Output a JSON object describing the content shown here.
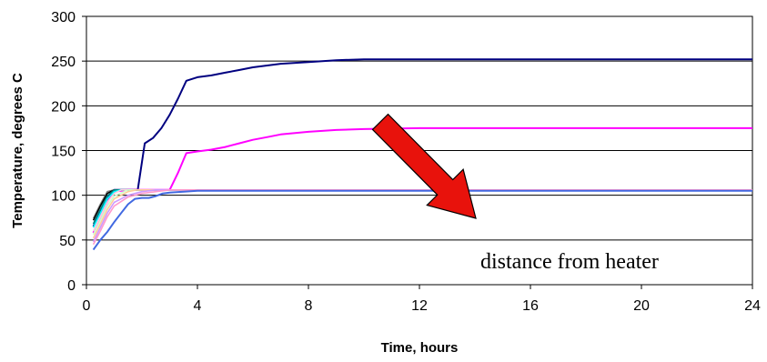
{
  "chart_data": {
    "type": "line",
    "title": "",
    "xlabel": "Time, hours",
    "ylabel": "Temperature, degrees C",
    "xlim": [
      0,
      24
    ],
    "ylim": [
      0,
      300
    ],
    "x_ticks": [
      0,
      4,
      8,
      12,
      16,
      20,
      24
    ],
    "y_ticks": [
      0,
      50,
      100,
      150,
      200,
      250,
      300
    ],
    "grid": "horizontal",
    "legend": "none",
    "annotation": "distance from heater",
    "arrow_color": "#e8120c",
    "series": [
      {
        "color": "#000080",
        "points": [
          [
            0.25,
            65
          ],
          [
            0.5,
            82
          ],
          [
            0.75,
            96
          ],
          [
            1.0,
            106
          ],
          [
            1.5,
            106
          ],
          [
            1.85,
            106
          ],
          [
            2.1,
            158
          ],
          [
            2.4,
            164
          ],
          [
            2.7,
            175
          ],
          [
            3.0,
            190
          ],
          [
            3.3,
            208
          ],
          [
            3.6,
            228
          ],
          [
            4.0,
            232
          ],
          [
            4.5,
            234
          ],
          [
            5.0,
            237
          ],
          [
            5.5,
            240
          ],
          [
            6.0,
            243
          ],
          [
            7.0,
            247
          ],
          [
            8.0,
            249
          ],
          [
            9.0,
            251
          ],
          [
            10.0,
            252
          ],
          [
            12.0,
            252
          ],
          [
            16.0,
            252
          ],
          [
            20.0,
            252
          ],
          [
            24.0,
            252
          ]
        ]
      },
      {
        "color": "#ff00ff",
        "points": [
          [
            0.25,
            58
          ],
          [
            0.5,
            76
          ],
          [
            0.75,
            92
          ],
          [
            1.0,
            104
          ],
          [
            1.5,
            106
          ],
          [
            2.0,
            106
          ],
          [
            2.5,
            106
          ],
          [
            3.0,
            106
          ],
          [
            3.3,
            125
          ],
          [
            3.6,
            147
          ],
          [
            4.0,
            149
          ],
          [
            4.5,
            151
          ],
          [
            5.0,
            154
          ],
          [
            5.5,
            158
          ],
          [
            6.0,
            162
          ],
          [
            6.5,
            165
          ],
          [
            7.0,
            168
          ],
          [
            8.0,
            171
          ],
          [
            9.0,
            173
          ],
          [
            10.0,
            174
          ],
          [
            12.0,
            175
          ],
          [
            16.0,
            175
          ],
          [
            20.0,
            175
          ],
          [
            24.0,
            175
          ]
        ]
      },
      {
        "color": "#808080",
        "points": [
          [
            0.25,
            74
          ],
          [
            0.5,
            90
          ],
          [
            0.75,
            104
          ],
          [
            1.0,
            106
          ],
          [
            24.0,
            106
          ]
        ]
      },
      {
        "color": "#000000",
        "points": [
          [
            0.25,
            72
          ],
          [
            0.5,
            88
          ],
          [
            0.75,
            102
          ],
          [
            1.0,
            106
          ],
          [
            24.0,
            106
          ]
        ]
      },
      {
        "color": "#008080",
        "points": [
          [
            0.25,
            68
          ],
          [
            0.5,
            84
          ],
          [
            0.75,
            99
          ],
          [
            1.0,
            106
          ],
          [
            24.0,
            106
          ]
        ]
      },
      {
        "color": "#00ffff",
        "points": [
          [
            0.25,
            64
          ],
          [
            0.5,
            80
          ],
          [
            0.75,
            96
          ],
          [
            1.0,
            104
          ],
          [
            1.25,
            106
          ],
          [
            24.0,
            106
          ]
        ]
      },
      {
        "color": "#ffd0e0",
        "points": [
          [
            0.25,
            60
          ],
          [
            0.5,
            76
          ],
          [
            0.75,
            92
          ],
          [
            1.0,
            102
          ],
          [
            1.25,
            106
          ],
          [
            24.0,
            106
          ]
        ]
      },
      {
        "color": "#ccffcc",
        "points": [
          [
            0.25,
            56
          ],
          [
            0.5,
            72
          ],
          [
            0.75,
            88
          ],
          [
            1.0,
            99
          ],
          [
            1.5,
            106
          ],
          [
            24.0,
            106
          ]
        ]
      },
      {
        "color": "#ffcc99",
        "points": [
          [
            0.25,
            52
          ],
          [
            0.5,
            68
          ],
          [
            0.75,
            84
          ],
          [
            1.0,
            96
          ],
          [
            1.5,
            104
          ],
          [
            1.8,
            106
          ],
          [
            24.0,
            106
          ]
        ]
      },
      {
        "color": "#cc99ff",
        "points": [
          [
            0.25,
            48
          ],
          [
            0.5,
            64
          ],
          [
            0.75,
            80
          ],
          [
            1.0,
            92
          ],
          [
            1.5,
            100
          ],
          [
            2.0,
            104
          ],
          [
            2.5,
            106
          ],
          [
            24.0,
            106
          ]
        ]
      },
      {
        "color": "#ff99cc",
        "points": [
          [
            0.25,
            45
          ],
          [
            0.5,
            60
          ],
          [
            0.75,
            76
          ],
          [
            1.0,
            88
          ],
          [
            1.5,
            98
          ],
          [
            2.0,
            102
          ],
          [
            2.5,
            104
          ],
          [
            3.0,
            106
          ],
          [
            24.0,
            106
          ]
        ]
      },
      {
        "color": "#4169e1",
        "points": [
          [
            0.25,
            39
          ],
          [
            0.5,
            50
          ],
          [
            0.75,
            59
          ],
          [
            1.0,
            70
          ],
          [
            1.25,
            80
          ],
          [
            1.5,
            90
          ],
          [
            1.75,
            96
          ],
          [
            2.0,
            97
          ],
          [
            2.25,
            97
          ],
          [
            2.5,
            99
          ],
          [
            2.75,
            102
          ],
          [
            3.0,
            103
          ],
          [
            3.5,
            104
          ],
          [
            4.0,
            105
          ],
          [
            6.0,
            105
          ],
          [
            10.0,
            105
          ],
          [
            14.0,
            105
          ],
          [
            18.0,
            105
          ],
          [
            24.0,
            105
          ]
        ]
      }
    ]
  }
}
